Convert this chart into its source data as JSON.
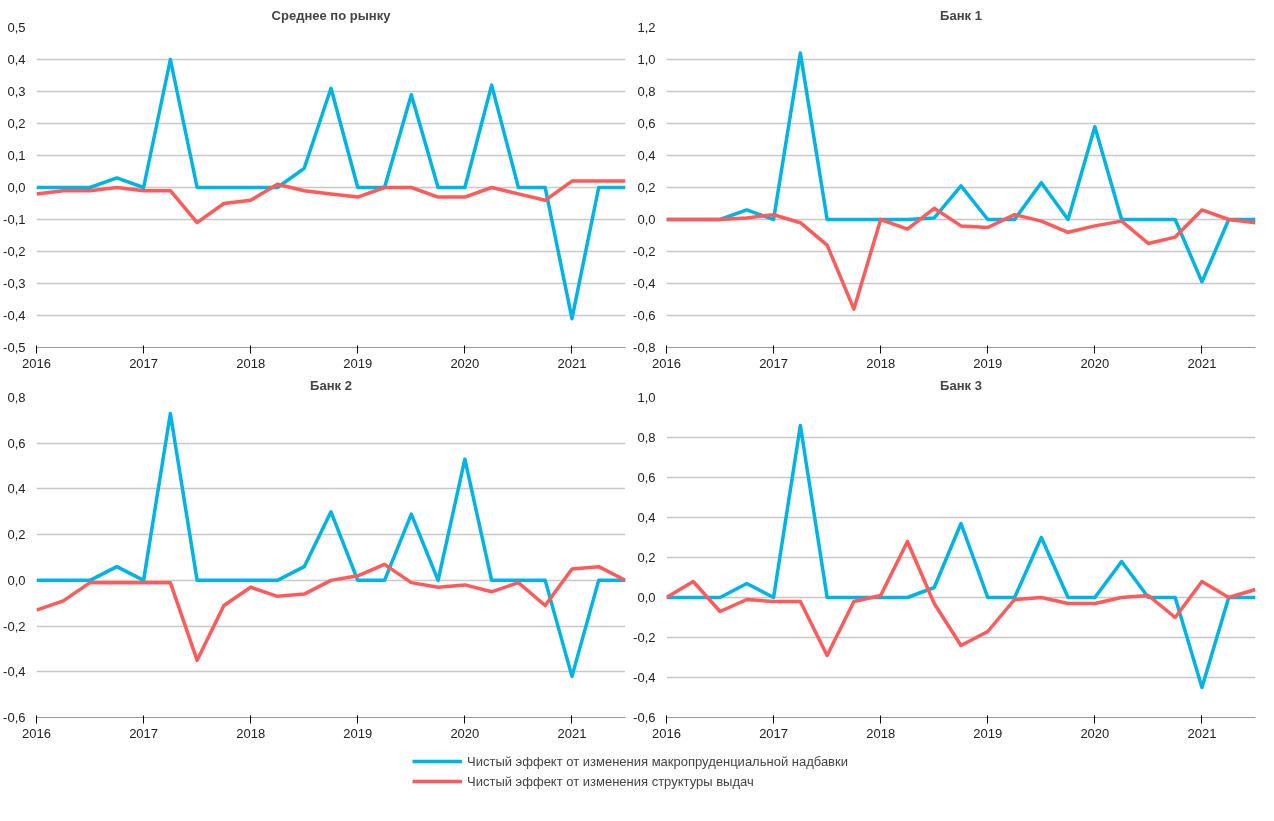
{
  "chart_data": [
    {
      "type": "line",
      "title": "Среднее по рынку",
      "x": [
        2016,
        2016.25,
        2016.5,
        2016.75,
        2017,
        2017.25,
        2017.5,
        2017.75,
        2018,
        2018.25,
        2018.5,
        2018.75,
        2019,
        2019.25,
        2019.5,
        2019.75,
        2020,
        2020.25,
        2020.5,
        2020.75,
        2021,
        2021.25,
        2021.5
      ],
      "xlim": [
        2016,
        2021.5
      ],
      "xticks": [
        2016,
        2017,
        2018,
        2019,
        2020,
        2021
      ],
      "ylim": [
        -0.5,
        0.5
      ],
      "yticks": [
        {
          "value": -0.5,
          "label": "-0,5"
        },
        {
          "value": -0.4,
          "label": "-0,4"
        },
        {
          "value": -0.3,
          "label": "-0,3"
        },
        {
          "value": -0.2,
          "label": "-0,2"
        },
        {
          "value": -0.1,
          "label": "-0,1"
        },
        {
          "value": 0,
          "label": "0,0"
        },
        {
          "value": 0.1,
          "label": "0,1"
        },
        {
          "value": 0.2,
          "label": "0,2"
        },
        {
          "value": 0.3,
          "label": "0,3"
        },
        {
          "value": 0.4,
          "label": "0,4"
        },
        {
          "value": 0.5,
          "label": "0,5"
        }
      ],
      "grid": "y",
      "series": [
        {
          "color": "#00b4e6",
          "values": [
            0,
            0,
            0,
            0.03,
            0,
            0.4,
            0,
            0,
            0,
            0,
            0.06,
            0.31,
            0,
            0,
            0.29,
            0,
            0,
            0.32,
            0,
            0,
            -0.41,
            0,
            0
          ]
        },
        {
          "color": "#ff5a5a",
          "values": [
            -0.02,
            -0.01,
            -0.01,
            0,
            -0.01,
            -0.01,
            -0.11,
            -0.05,
            -0.04,
            0.01,
            -0.01,
            -0.02,
            -0.03,
            0,
            0,
            -0.03,
            -0.03,
            0,
            -0.02,
            -0.04,
            0.02,
            0.02,
            0.02
          ]
        }
      ]
    },
    {
      "type": "line",
      "title": "Банк 1",
      "x": [
        2016,
        2016.25,
        2016.5,
        2016.75,
        2017,
        2017.25,
        2017.5,
        2017.75,
        2018,
        2018.25,
        2018.5,
        2018.75,
        2019,
        2019.25,
        2019.5,
        2019.75,
        2020,
        2020.25,
        2020.5,
        2020.75,
        2021,
        2021.25,
        2021.5
      ],
      "xlim": [
        2016,
        2021.5
      ],
      "xticks": [
        2016,
        2017,
        2018,
        2019,
        2020,
        2021
      ],
      "ylim": [
        -0.8,
        1.2
      ],
      "yticks": [
        {
          "value": -0.8,
          "label": "-0,8"
        },
        {
          "value": -0.6,
          "label": "-0,6"
        },
        {
          "value": -0.4,
          "label": "-0,4"
        },
        {
          "value": -0.2,
          "label": "-0,2"
        },
        {
          "value": 0,
          "label": "0,0"
        },
        {
          "value": 0.2,
          "label": "0,2"
        },
        {
          "value": 0.4,
          "label": "0,4"
        },
        {
          "value": 0.6,
          "label": "0,6"
        },
        {
          "value": 0.8,
          "label": "0,8"
        },
        {
          "value": 1.0,
          "label": "1,0"
        },
        {
          "value": 1.2,
          "label": "1,2"
        }
      ],
      "grid": "y",
      "series": [
        {
          "color": "#00b4e6",
          "values": [
            0,
            0,
            0,
            0.06,
            0,
            1.04,
            0,
            0,
            0,
            0,
            0.01,
            0.21,
            0,
            0,
            0.23,
            0,
            0.58,
            0,
            0,
            0,
            -0.39,
            0,
            0
          ]
        },
        {
          "color": "#ff5a5a",
          "values": [
            0,
            0,
            0,
            0.01,
            0.03,
            -0.02,
            -0.16,
            -0.56,
            0,
            -0.06,
            0.07,
            -0.04,
            -0.05,
            0.03,
            -0.01,
            -0.08,
            -0.04,
            -0.01,
            -0.15,
            -0.11,
            0.06,
            0,
            -0.02
          ]
        }
      ]
    },
    {
      "type": "line",
      "title": "Банк 2",
      "x": [
        2016,
        2016.25,
        2016.5,
        2016.75,
        2017,
        2017.25,
        2017.5,
        2017.75,
        2018,
        2018.25,
        2018.5,
        2018.75,
        2019,
        2019.25,
        2019.5,
        2019.75,
        2020,
        2020.25,
        2020.5,
        2020.75,
        2021,
        2021.25,
        2021.5
      ],
      "xlim": [
        2016,
        2021.5
      ],
      "xticks": [
        2016,
        2017,
        2018,
        2019,
        2020,
        2021
      ],
      "ylim": [
        -0.6,
        0.8
      ],
      "yticks": [
        {
          "value": -0.6,
          "label": "-0,6"
        },
        {
          "value": -0.4,
          "label": "-0,4"
        },
        {
          "value": -0.2,
          "label": "-0,2"
        },
        {
          "value": 0,
          "label": "0,0"
        },
        {
          "value": 0.2,
          "label": "0,2"
        },
        {
          "value": 0.4,
          "label": "0,4"
        },
        {
          "value": 0.6,
          "label": "0,6"
        },
        {
          "value": 0.8,
          "label": "0,8"
        }
      ],
      "grid": "y",
      "series": [
        {
          "color": "#00b4e6",
          "values": [
            0,
            0,
            0,
            0.06,
            0,
            0.73,
            0,
            0,
            0,
            0,
            0.06,
            0.3,
            0,
            0,
            0.29,
            0,
            0.53,
            0,
            0,
            0,
            -0.42,
            0,
            0
          ]
        },
        {
          "color": "#ff5a5a",
          "values": [
            -0.13,
            -0.09,
            -0.01,
            -0.01,
            -0.01,
            -0.01,
            -0.35,
            -0.11,
            -0.03,
            -0.07,
            -0.06,
            0,
            0.02,
            0.07,
            -0.01,
            -0.03,
            -0.02,
            -0.05,
            -0.01,
            -0.11,
            0.05,
            0.06,
            0
          ]
        }
      ]
    },
    {
      "type": "line",
      "title": "Банк 3",
      "x": [
        2016,
        2016.25,
        2016.5,
        2016.75,
        2017,
        2017.25,
        2017.5,
        2017.75,
        2018,
        2018.25,
        2018.5,
        2018.75,
        2019,
        2019.25,
        2019.5,
        2019.75,
        2020,
        2020.25,
        2020.5,
        2020.75,
        2021,
        2021.25,
        2021.5
      ],
      "xlim": [
        2016,
        2021.5
      ],
      "xticks": [
        2016,
        2017,
        2018,
        2019,
        2020,
        2021
      ],
      "ylim": [
        -0.6,
        1.0
      ],
      "yticks": [
        {
          "value": -0.6,
          "label": "-0,6"
        },
        {
          "value": -0.4,
          "label": "-0,4"
        },
        {
          "value": -0.2,
          "label": "-0,2"
        },
        {
          "value": 0,
          "label": "0,0"
        },
        {
          "value": 0.2,
          "label": "0,2"
        },
        {
          "value": 0.4,
          "label": "0,4"
        },
        {
          "value": 0.6,
          "label": "0,6"
        },
        {
          "value": 0.8,
          "label": "0,8"
        },
        {
          "value": 1.0,
          "label": "1,0"
        }
      ],
      "grid": "y",
      "legend": "bottom",
      "series": [
        {
          "name": "Чистый эффект от изменения макропруденциальной надбавки",
          "color": "#00b4e6",
          "values": [
            0,
            0,
            0,
            0.07,
            0,
            0.86,
            0,
            0,
            0,
            0,
            0.05,
            0.37,
            0,
            0,
            0.3,
            0,
            0,
            0.18,
            0,
            0,
            -0.45,
            0,
            0
          ]
        },
        {
          "name": "Чистый эффект от изменения структуры выдач",
          "color": "#ff5a5a",
          "values": [
            0,
            0.08,
            -0.07,
            -0.01,
            -0.02,
            -0.02,
            -0.29,
            -0.02,
            0.01,
            0.28,
            -0.03,
            -0.24,
            -0.17,
            -0.01,
            0,
            -0.03,
            -0.03,
            0,
            0.01,
            -0.1,
            0.08,
            0,
            0.04
          ]
        }
      ]
    }
  ]
}
